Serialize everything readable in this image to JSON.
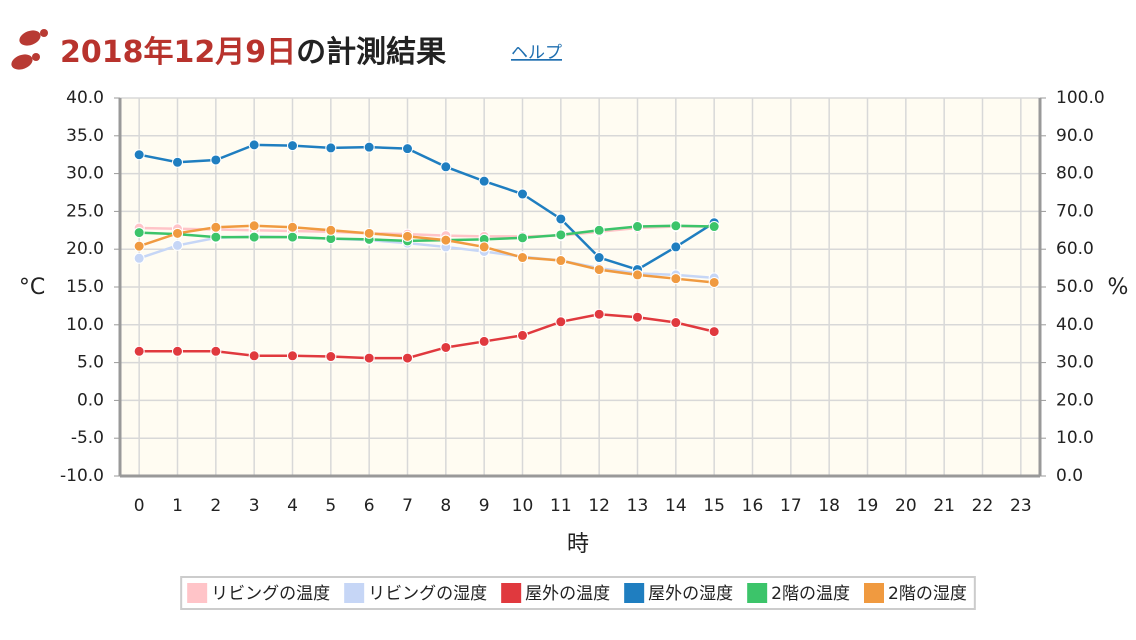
{
  "chart_data": {
    "type": "line",
    "title_date": "2018年12月9日",
    "title_suffix": "の計測結果",
    "help_link": "ヘルプ",
    "y_label": "°C",
    "y2_label": "%",
    "x_label": "時",
    "categories": [
      "0",
      "1",
      "2",
      "3",
      "4",
      "5",
      "6",
      "7",
      "8",
      "9",
      "10",
      "11",
      "12",
      "13",
      "14",
      "15",
      "16",
      "17",
      "18",
      "19",
      "20",
      "21",
      "22",
      "23"
    ],
    "ylim": [
      -10,
      40
    ],
    "yticks": [
      {
        "value": -10,
        "label": "-10.0"
      },
      {
        "value": -5,
        "label": "-5.0"
      },
      {
        "value": 0,
        "label": "0.0"
      },
      {
        "value": 5,
        "label": "5.0"
      },
      {
        "value": 10,
        "label": "10.0"
      },
      {
        "value": 15,
        "label": "15.0"
      },
      {
        "value": 20,
        "label": "20.0"
      },
      {
        "value": 25,
        "label": "25.0"
      },
      {
        "value": 30,
        "label": "30.0"
      },
      {
        "value": 35,
        "label": "35.0"
      },
      {
        "value": 40,
        "label": "40.0"
      }
    ],
    "y2lim": [
      0,
      100
    ],
    "y2ticks": [
      {
        "value": 0,
        "label": "0.0"
      },
      {
        "value": 10,
        "label": "10.0"
      },
      {
        "value": 20,
        "label": "20.0"
      },
      {
        "value": 30,
        "label": "30.0"
      },
      {
        "value": 40,
        "label": "40.0"
      },
      {
        "value": 50,
        "label": "50.0"
      },
      {
        "value": 60,
        "label": "60.0"
      },
      {
        "value": 70,
        "label": "70.0"
      },
      {
        "value": 80,
        "label": "80.0"
      },
      {
        "value": 90,
        "label": "90.0"
      },
      {
        "value": 100,
        "label": "100.0"
      }
    ],
    "grid": true,
    "legend": "bottom",
    "series": [
      {
        "name": "リビングの温度",
        "color": "#ffc4c8",
        "values": [
          22.8,
          22.7,
          22.6,
          22.5,
          22.4,
          22.3,
          22.1,
          22.0,
          21.8,
          21.7,
          21.7,
          21.8,
          22.3,
          22.8,
          23.0,
          23.0,
          null,
          null,
          null,
          null,
          null,
          null,
          null,
          null
        ]
      },
      {
        "name": "リビングの湿度",
        "color": "#c6d6f6",
        "axis": "y2",
        "values": [
          57.6,
          61.0,
          63.0,
          63.4,
          63.2,
          62.8,
          62.4,
          61.6,
          60.6,
          59.4,
          58.0,
          57.0,
          55.0,
          53.6,
          53.2,
          52.4,
          null,
          null,
          null,
          null,
          null,
          null,
          null,
          null
        ]
      },
      {
        "name": "屋外の温度",
        "color": "#e0393e",
        "values": [
          6.5,
          6.5,
          6.5,
          5.9,
          5.9,
          5.8,
          5.6,
          5.6,
          7.0,
          7.8,
          8.6,
          10.4,
          11.4,
          11.0,
          10.3,
          9.1,
          null,
          null,
          null,
          null,
          null,
          null,
          null,
          null
        ]
      },
      {
        "name": "屋外の湿度",
        "color": "#1f7ec0",
        "axis": "y2",
        "values": [
          85.0,
          83.0,
          83.6,
          87.6,
          87.4,
          86.8,
          87.0,
          86.6,
          81.8,
          78.0,
          74.6,
          68.0,
          57.8,
          54.6,
          60.6,
          67.0,
          null,
          null,
          null,
          null,
          null,
          null,
          null,
          null
        ]
      },
      {
        "name": "2階の温度",
        "color": "#3cc46a",
        "values": [
          22.2,
          22.0,
          21.6,
          21.6,
          21.6,
          21.4,
          21.3,
          21.1,
          21.2,
          21.3,
          21.5,
          21.9,
          22.5,
          23.0,
          23.1,
          23.0,
          null,
          null,
          null,
          null,
          null,
          null,
          null,
          null
        ]
      },
      {
        "name": "2階の湿度",
        "color": "#f09a40",
        "axis": "y2",
        "values": [
          60.8,
          64.2,
          65.8,
          66.2,
          65.8,
          65.0,
          64.2,
          63.4,
          62.4,
          60.6,
          57.8,
          57.0,
          54.6,
          53.2,
          52.2,
          51.2,
          null,
          null,
          null,
          null,
          null,
          null,
          null,
          null
        ]
      }
    ]
  }
}
